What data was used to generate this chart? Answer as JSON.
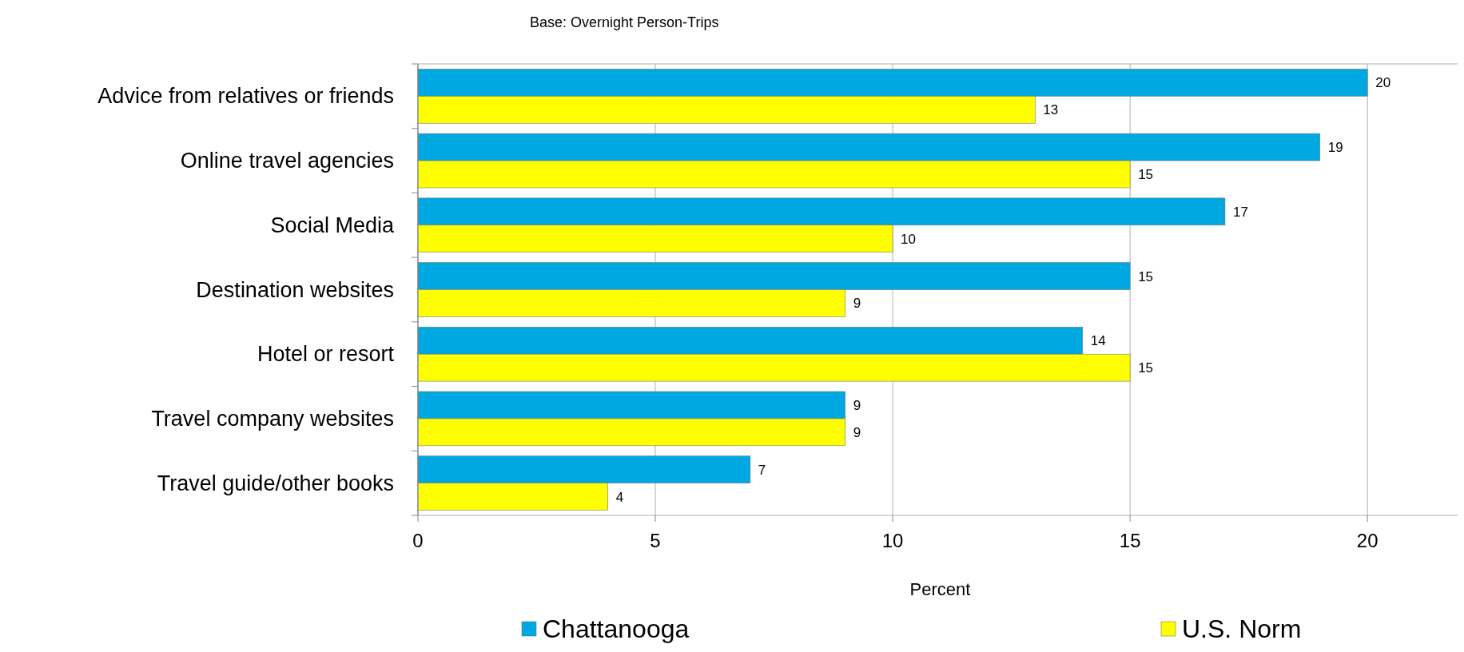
{
  "chart_data": {
    "type": "bar",
    "orientation": "horizontal",
    "subtitle": "Base: Overnight Person-Trips",
    "xlabel": "Percent",
    "categories": [
      "Advice from relatives or friends",
      "Online travel agencies",
      "Social Media",
      "Destination websites",
      "Hotel or resort",
      "Travel company websites",
      "Travel guide/other books"
    ],
    "series": [
      {
        "name": "Chattanooga",
        "color": "#00a8e1",
        "values": [
          20,
          19,
          17,
          15,
          14,
          9,
          7
        ]
      },
      {
        "name": "U.S. Norm",
        "color": "#ffff00",
        "values": [
          13,
          15,
          10,
          9,
          15,
          9,
          4
        ]
      }
    ],
    "xlim": [
      0,
      22
    ],
    "xticks": [
      0,
      5,
      10,
      15,
      20
    ],
    "grid": "x",
    "legend": "bottom",
    "data_labels": true
  }
}
